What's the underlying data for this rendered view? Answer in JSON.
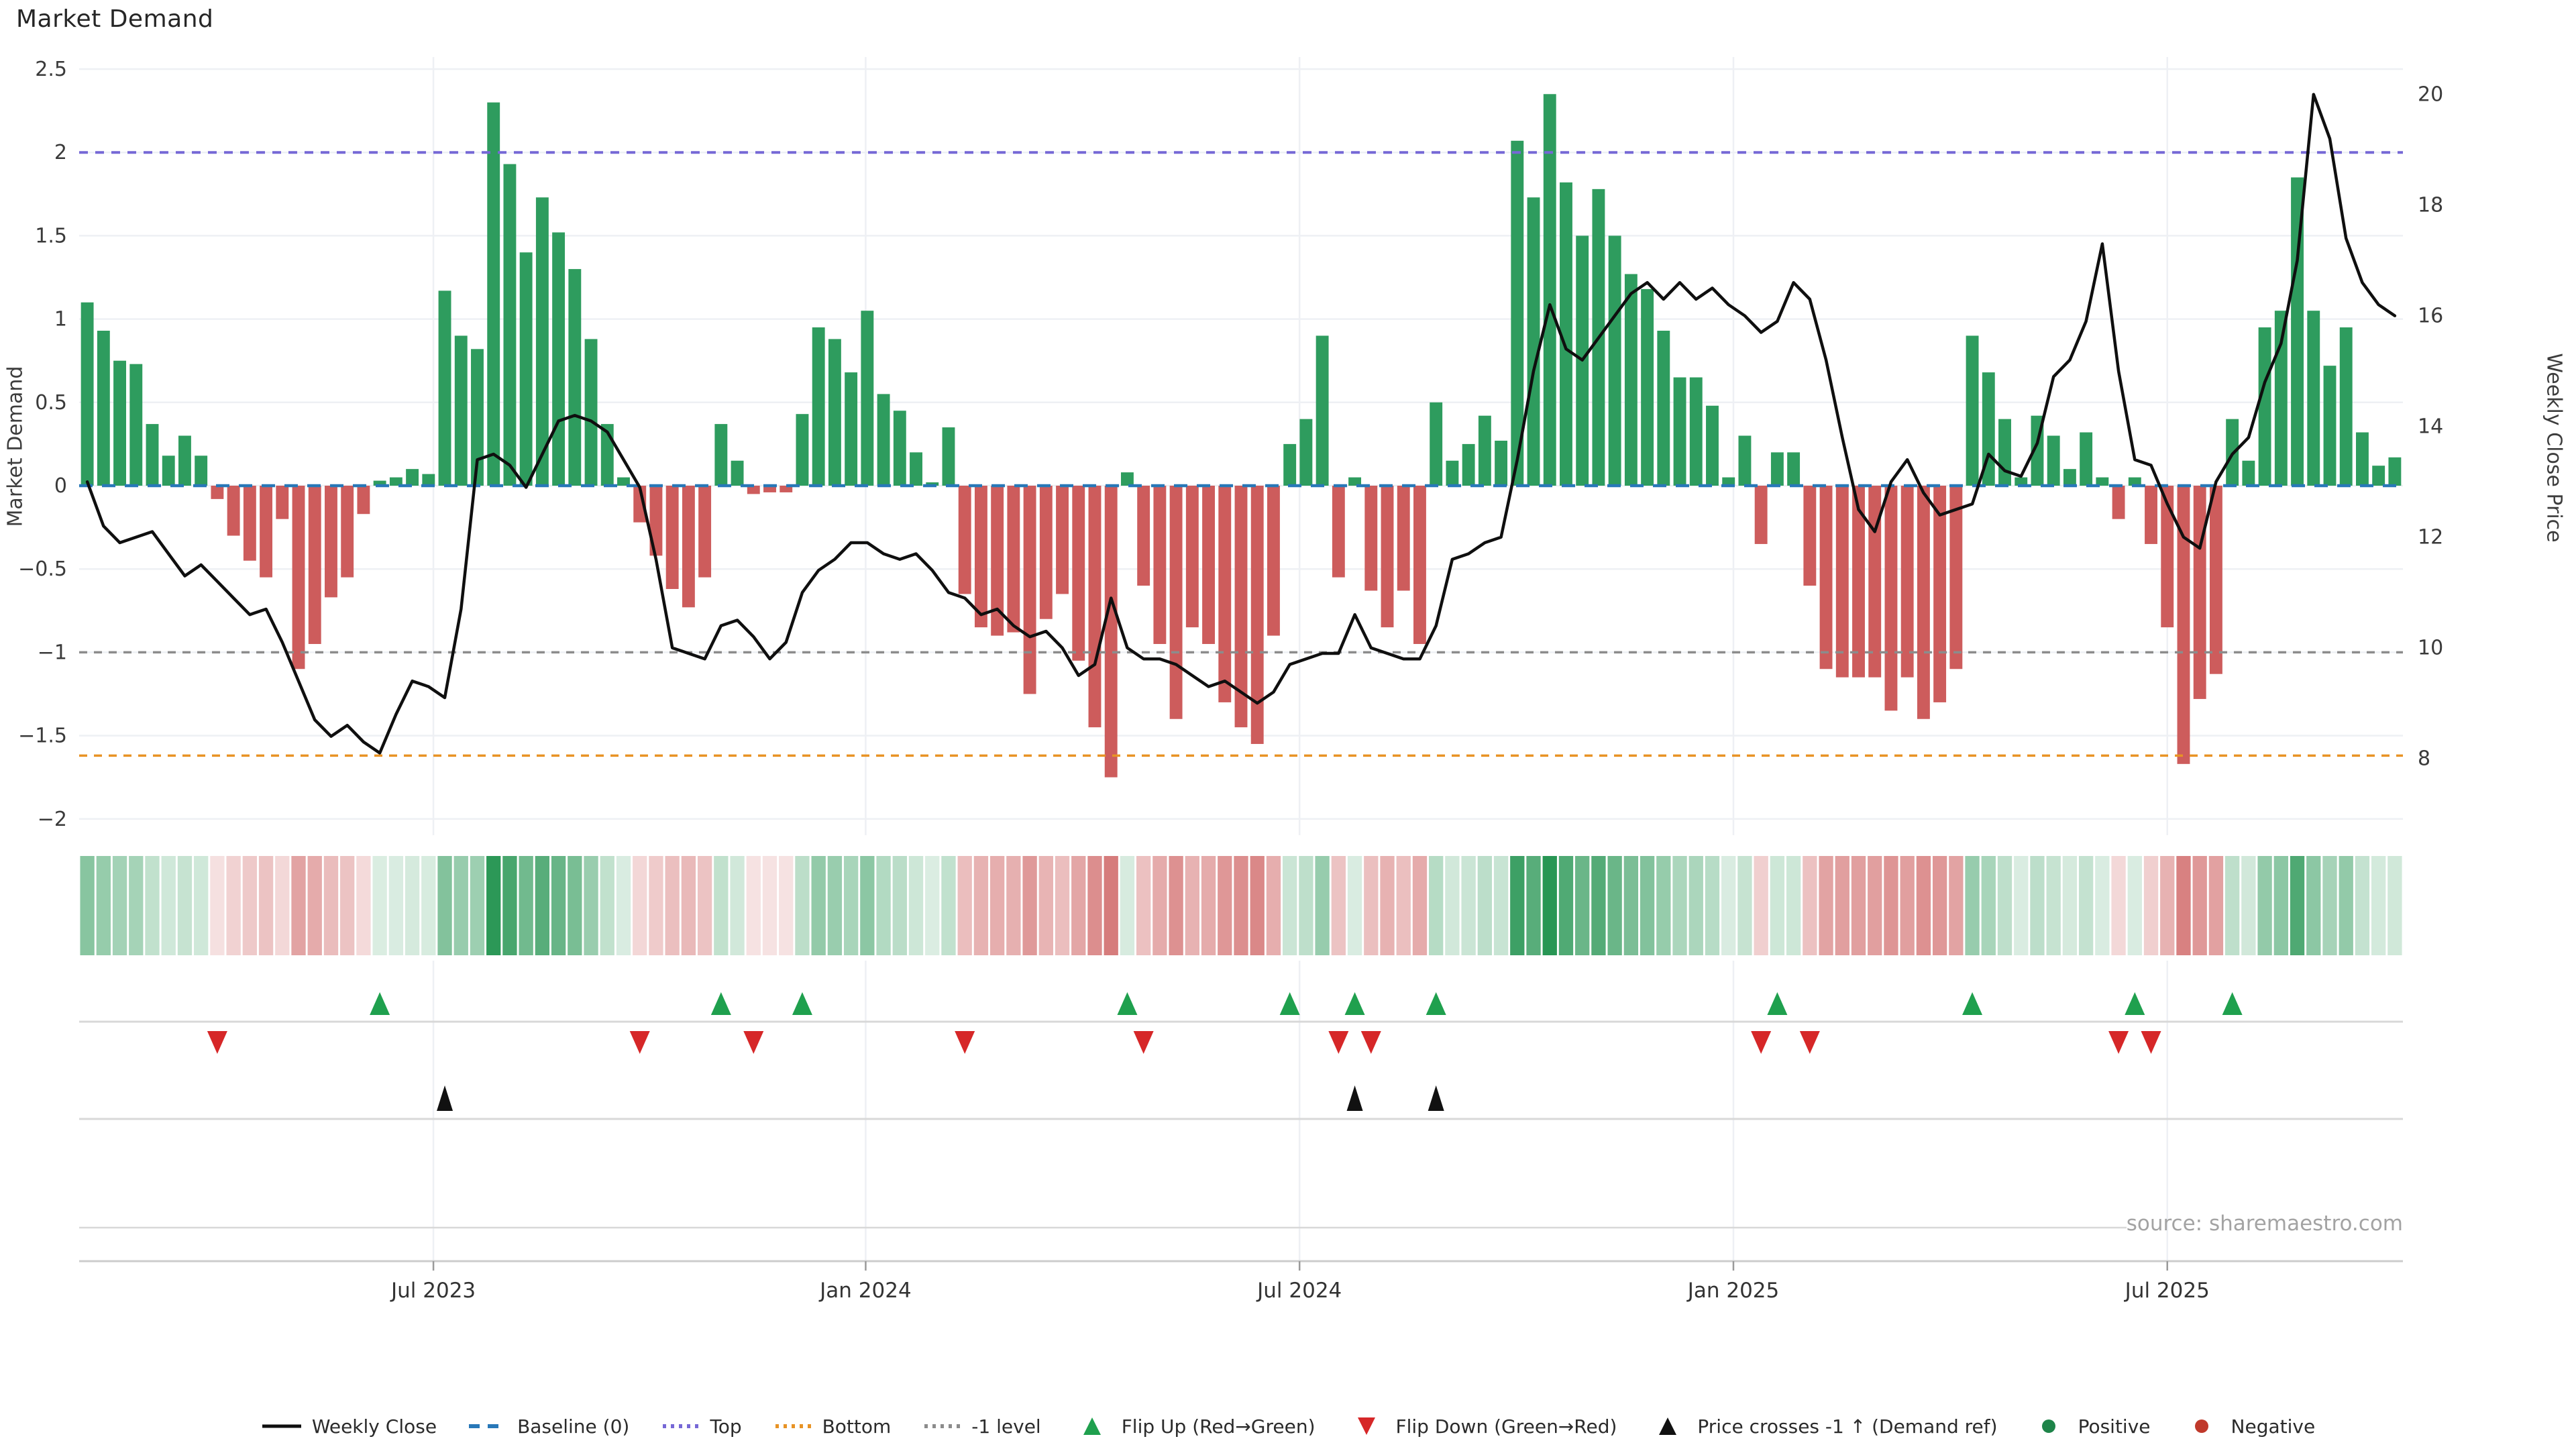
{
  "title": "Market Demand",
  "source_text": "source: sharemaestro.com",
  "colors": {
    "positive_bar": "#2e9c5e",
    "negative_bar": "#cd5c5c",
    "price_line": "#0f0f0f",
    "baseline": "#2878b8",
    "top_line": "#7668d6",
    "bottom_line": "#e89325",
    "minus1_line": "#8c8c8c",
    "flip_up_marker": "#1fa04e",
    "flip_down_marker": "#d62728",
    "cross_marker": "#111111",
    "grid": "#eef0f4",
    "divider": "#d8d8d8",
    "spine": "#cccccc",
    "tick_text": "#3a3a3a",
    "date_text": "#333333"
  },
  "left_axis": {
    "label": "Market Demand",
    "ticks": [
      2.5,
      2,
      1.5,
      1,
      0.5,
      0,
      -0.5,
      -1,
      -1.5,
      -2
    ]
  },
  "right_axis": {
    "label": "Weekly Close Price",
    "ticks": [
      20,
      18,
      16,
      14,
      12,
      10,
      8
    ]
  },
  "x_axis": {
    "labels": [
      "Jul 2023",
      "Jan 2024",
      "Jul 2024",
      "Jan 2025",
      "Jul 2025"
    ],
    "week_positions": [
      21.3,
      47.9,
      74.6,
      101.3,
      128.0
    ]
  },
  "legend": {
    "items": [
      {
        "label": "Weekly Close",
        "marker": "line",
        "color": "#0f0f0f"
      },
      {
        "label": "Baseline (0)",
        "marker": "dashes",
        "color": "#2878b8"
      },
      {
        "label": "Top",
        "marker": "dots",
        "color": "#7668d6"
      },
      {
        "label": "Bottom",
        "marker": "dots",
        "color": "#e89325"
      },
      {
        "label": "-1 level",
        "marker": "dots",
        "color": "#8c8c8c"
      },
      {
        "label": "Flip Up (Red→Green)",
        "marker": "triangle-up",
        "color": "#1fa04e"
      },
      {
        "label": "Flip Down (Green→Red)",
        "marker": "triangle-down",
        "color": "#d62728"
      },
      {
        "label": "Price crosses -1 ↑ (Demand ref)",
        "marker": "triangle-up",
        "color": "#111111"
      },
      {
        "label": "Positive",
        "marker": "circle",
        "color": "#1e8449"
      },
      {
        "label": "Negative",
        "marker": "circle",
        "color": "#c0392b"
      }
    ]
  },
  "chart_data": {
    "type": "bar",
    "title": "Market Demand",
    "ylabel_left": "Market Demand",
    "ylabel_right": "Weekly Close Price",
    "ylim_left": [
      -2.1,
      2.57
    ],
    "ylim_right": [
      6.6,
      20.9
    ],
    "grid": true,
    "legend_position": "bottom",
    "series": [
      {
        "name": "Market Demand (weekly bars)",
        "values": [
          1.1,
          0.93,
          0.75,
          0.73,
          0.37,
          0.18,
          0.3,
          0.18,
          -0.08,
          -0.3,
          -0.45,
          -0.55,
          -0.2,
          -1.1,
          -0.95,
          -0.67,
          -0.55,
          -0.17,
          0.03,
          0.05,
          0.1,
          0.07,
          1.17,
          0.9,
          0.82,
          2.3,
          1.93,
          1.4,
          1.73,
          1.52,
          1.3,
          0.88,
          0.37,
          0.05,
          -0.22,
          -0.42,
          -0.62,
          -0.73,
          -0.55,
          0.37,
          0.15,
          -0.05,
          -0.04,
          -0.04,
          0.43,
          0.95,
          0.88,
          0.68,
          1.05,
          0.55,
          0.45,
          0.2,
          0.02,
          0.35,
          -0.65,
          -0.85,
          -0.9,
          -0.88,
          -1.25,
          -0.8,
          -0.65,
          -1.05,
          -1.45,
          -1.75,
          0.08,
          -0.6,
          -0.95,
          -1.4,
          -0.85,
          -0.95,
          -1.3,
          -1.45,
          -1.55,
          -0.9,
          0.25,
          0.4,
          0.9,
          -0.55,
          0.05,
          -0.63,
          -0.85,
          -0.63,
          -0.95,
          0.5,
          0.15,
          0.25,
          0.42,
          0.27,
          2.07,
          1.73,
          2.35,
          1.82,
          1.5,
          1.78,
          1.5,
          1.27,
          1.18,
          0.93,
          0.65,
          0.65,
          0.48,
          0.05,
          0.3,
          -0.35,
          0.2,
          0.2,
          -0.6,
          -1.1,
          -1.15,
          -1.15,
          -1.15,
          -1.35,
          -1.15,
          -1.4,
          -1.3,
          -1.1,
          0.9,
          0.68,
          0.4,
          0.05,
          0.42,
          0.3,
          0.1,
          0.32,
          0.05,
          -0.2,
          0.05,
          -0.35,
          -0.85,
          -1.67,
          -1.28,
          -1.13,
          0.4,
          0.15,
          0.95,
          1.05,
          1.85,
          1.05,
          0.72,
          0.95,
          0.32,
          0.12,
          0.17
        ]
      },
      {
        "name": "Weekly Close",
        "values": [
          13.0,
          12.2,
          11.9,
          12.0,
          12.1,
          11.7,
          11.3,
          11.5,
          11.2,
          10.9,
          10.6,
          10.7,
          10.1,
          9.4,
          8.7,
          8.4,
          8.6,
          8.3,
          8.1,
          8.8,
          9.4,
          9.3,
          9.1,
          10.7,
          13.4,
          13.5,
          13.3,
          12.9,
          13.5,
          14.1,
          14.2,
          14.1,
          13.9,
          13.4,
          12.9,
          11.6,
          10.0,
          9.9,
          9.8,
          10.4,
          10.5,
          10.2,
          9.8,
          10.1,
          11.0,
          11.4,
          11.6,
          11.9,
          11.9,
          11.7,
          11.6,
          11.7,
          11.4,
          11.0,
          10.9,
          10.6,
          10.7,
          10.4,
          10.2,
          10.3,
          10.0,
          9.5,
          9.7,
          10.9,
          10.0,
          9.8,
          9.8,
          9.7,
          9.5,
          9.3,
          9.4,
          9.2,
          9.0,
          9.2,
          9.7,
          9.8,
          9.9,
          9.9,
          10.6,
          10.0,
          9.9,
          9.8,
          9.8,
          10.4,
          11.6,
          11.7,
          11.9,
          12.0,
          13.4,
          15.0,
          16.2,
          15.4,
          15.2,
          15.6,
          16.0,
          16.4,
          16.6,
          16.3,
          16.6,
          16.3,
          16.5,
          16.2,
          16.0,
          15.7,
          15.9,
          16.6,
          16.3,
          15.2,
          13.8,
          12.5,
          12.1,
          13.0,
          13.4,
          12.8,
          12.4,
          12.5,
          12.6,
          13.5,
          13.2,
          13.1,
          13.7,
          14.9,
          15.2,
          15.9,
          17.3,
          15.0,
          13.4,
          13.3,
          12.6,
          12.0,
          11.8,
          13.0,
          13.5,
          13.8,
          14.8,
          15.5,
          17.0,
          20.0,
          19.2,
          17.4,
          16.6,
          16.2,
          16.0
        ]
      }
    ],
    "reference_lines": {
      "baseline": 0,
      "top": 2.0,
      "bottom": -1.62,
      "minus1": -1.0
    },
    "markers": {
      "flip_up_weeks": [
        18,
        39,
        44,
        64,
        74,
        78,
        83,
        104,
        116,
        126,
        132
      ],
      "flip_down_weeks": [
        8,
        34,
        41,
        54,
        65,
        77,
        79,
        103,
        106,
        125,
        127
      ],
      "price_cross_weeks": [
        22,
        78,
        83
      ]
    },
    "heatmap_strip": "sign/intensity of weekly demand bars"
  }
}
